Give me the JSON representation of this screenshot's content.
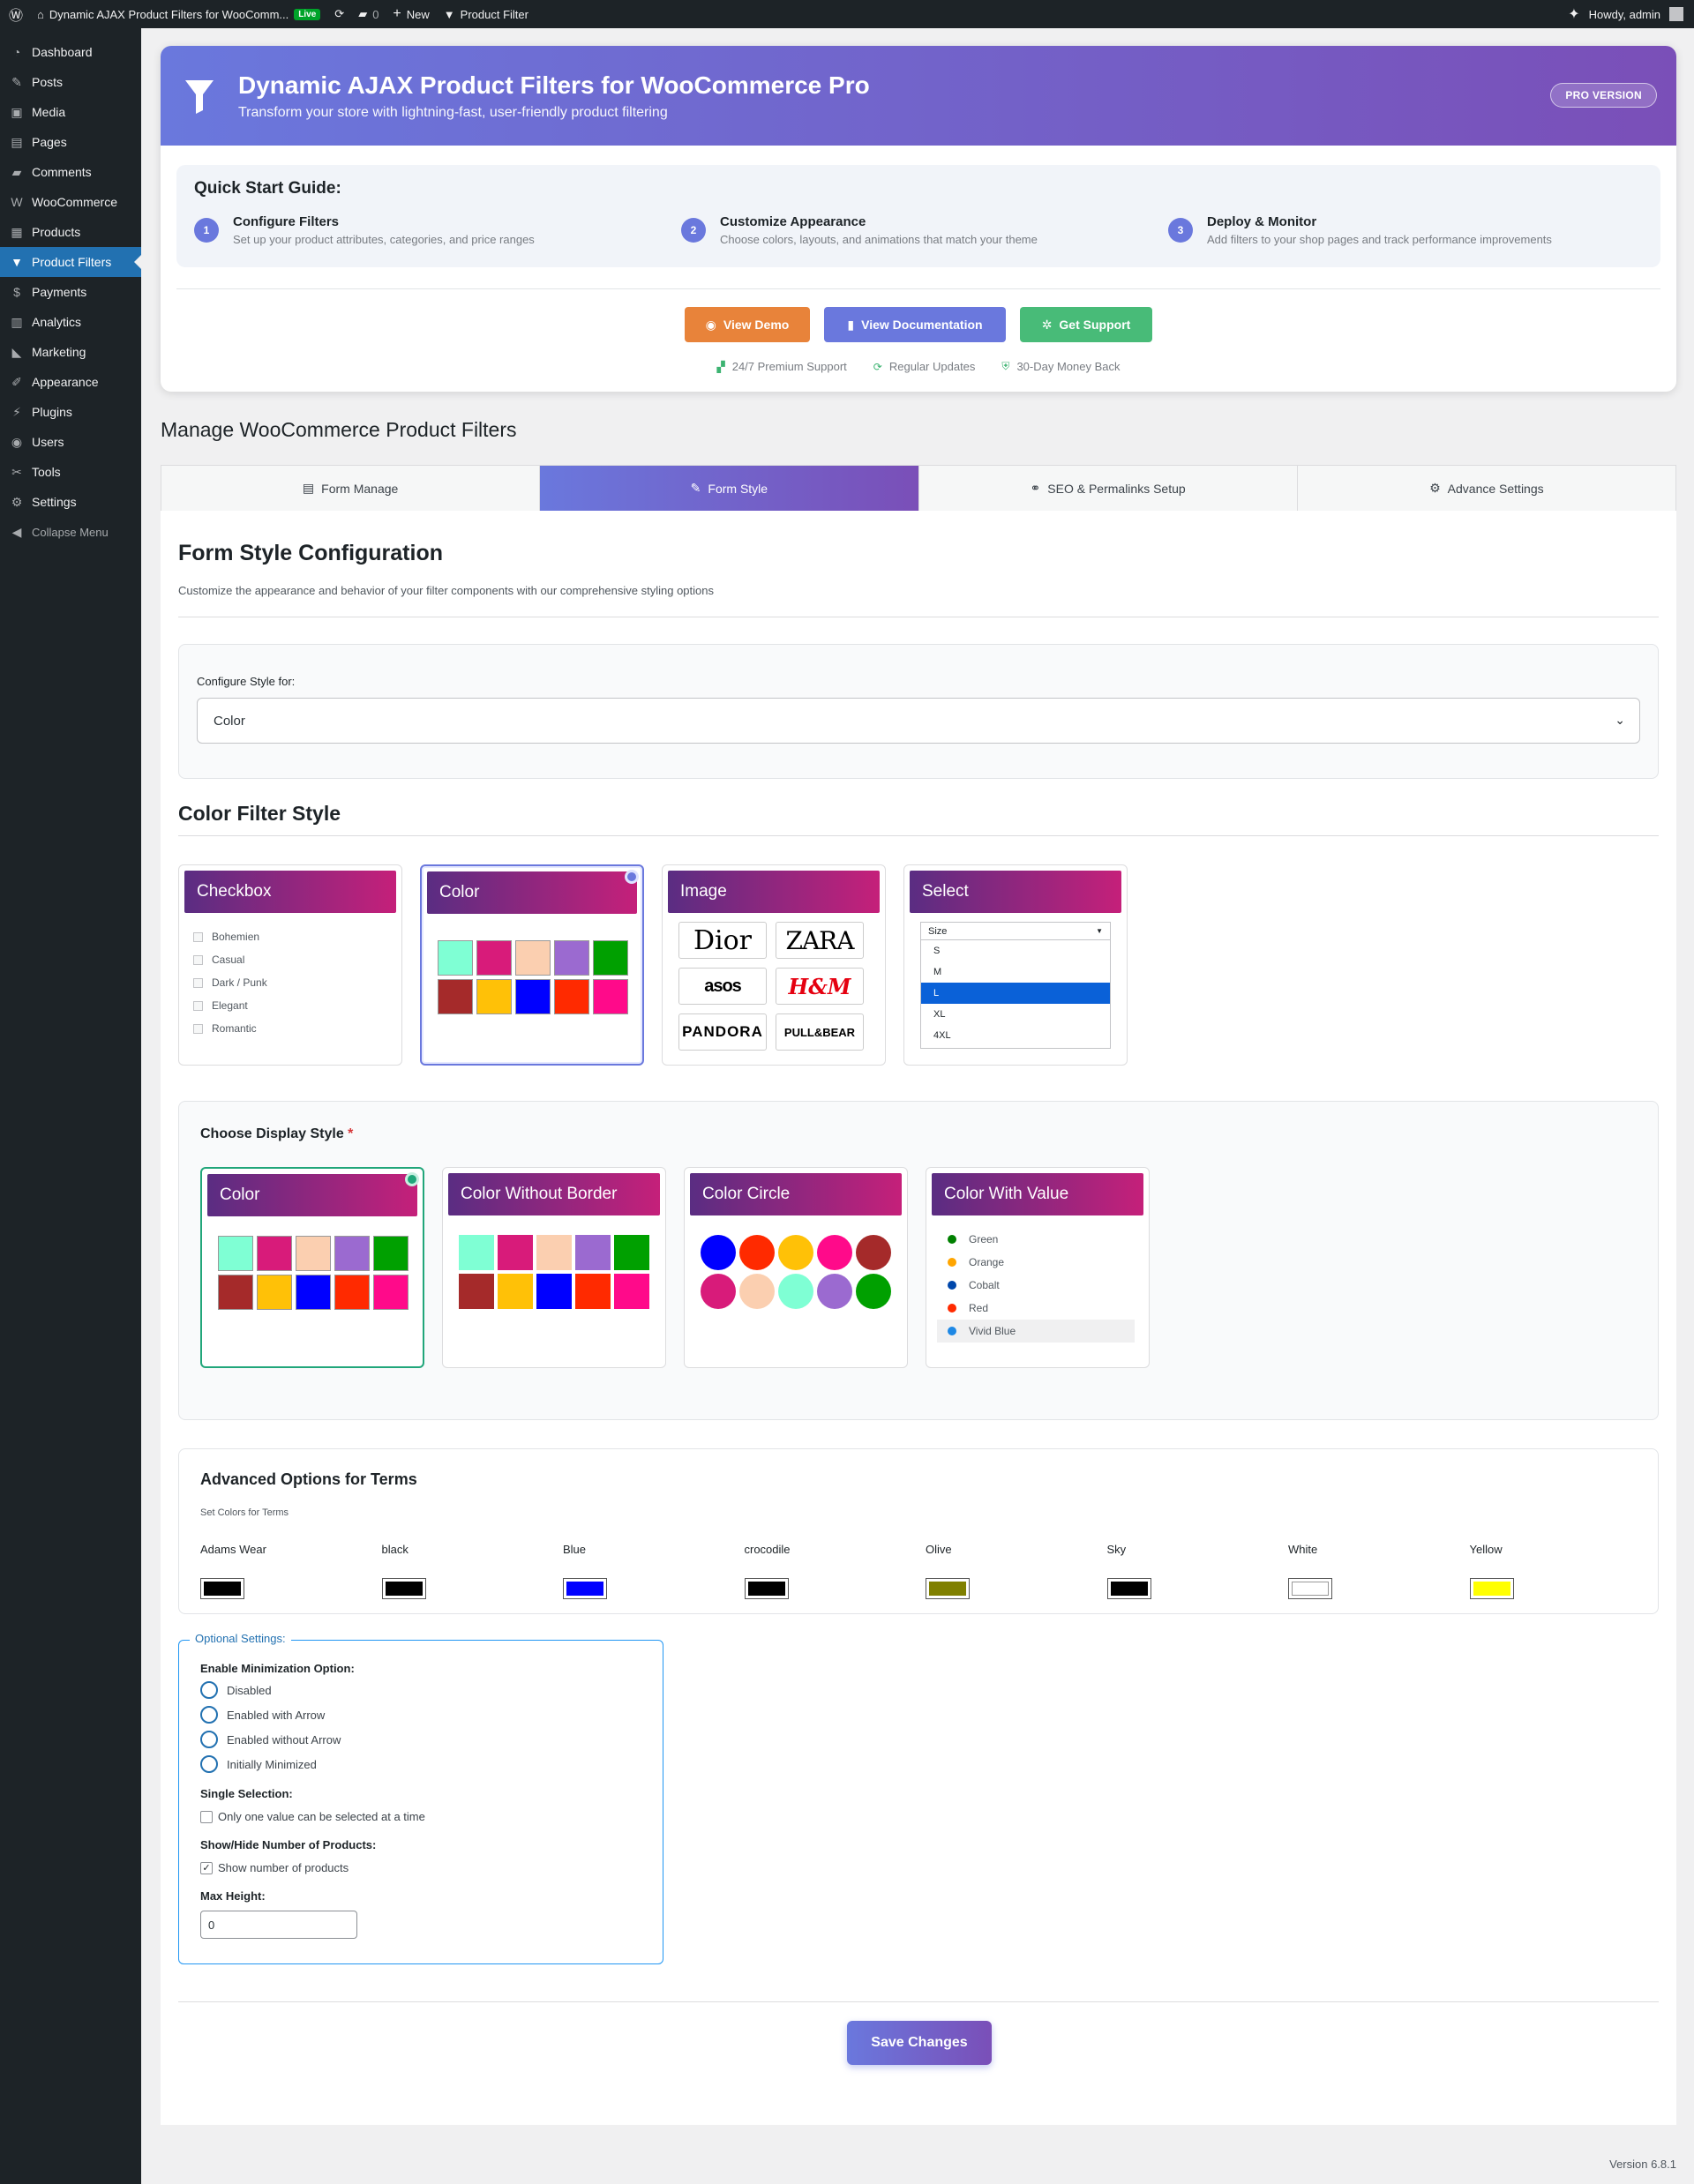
{
  "admin_bar": {
    "site_title": "Dynamic AJAX Product Filters for WooComm...",
    "live_badge": "Live",
    "comments_count": "0",
    "new_label": "New",
    "plugin_link": "Product Filter",
    "howdy": "Howdy, admin"
  },
  "sidebar": {
    "items": [
      {
        "label": "Dashboard",
        "icon": "dashboard-icon",
        "glyph": "◔"
      },
      {
        "label": "Posts",
        "icon": "pin-icon",
        "glyph": "✎"
      },
      {
        "label": "Media",
        "icon": "media-icon",
        "glyph": "▣"
      },
      {
        "label": "Pages",
        "icon": "pages-icon",
        "glyph": "▤"
      },
      {
        "label": "Comments",
        "icon": "comments-icon",
        "glyph": "▰"
      },
      {
        "label": "WooCommerce",
        "icon": "woo-icon",
        "glyph": "W"
      },
      {
        "label": "Products",
        "icon": "products-icon",
        "glyph": "▦"
      },
      {
        "label": "Product Filters",
        "icon": "filter-icon",
        "glyph": "▼"
      },
      {
        "label": "Payments",
        "icon": "payments-icon",
        "glyph": "$"
      },
      {
        "label": "Analytics",
        "icon": "analytics-icon",
        "glyph": "▥"
      },
      {
        "label": "Marketing",
        "icon": "marketing-icon",
        "glyph": "◣"
      },
      {
        "label": "Appearance",
        "icon": "appearance-icon",
        "glyph": "✐"
      },
      {
        "label": "Plugins",
        "icon": "plugins-icon",
        "glyph": "⚡"
      },
      {
        "label": "Users",
        "icon": "users-icon",
        "glyph": "◉"
      },
      {
        "label": "Tools",
        "icon": "tools-icon",
        "glyph": "✂"
      },
      {
        "label": "Settings",
        "icon": "settings-icon",
        "glyph": "⚙"
      }
    ],
    "collapse": "Collapse Menu"
  },
  "hero": {
    "title": "Dynamic AJAX Product Filters for WooCommerce Pro",
    "subtitle": "Transform your store with lightning-fast, user-friendly product filtering",
    "badge": "PRO VERSION",
    "guide_title": "Quick Start Guide:",
    "steps": [
      {
        "num": "1",
        "title": "Configure Filters",
        "desc": "Set up your product attributes, categories, and price ranges"
      },
      {
        "num": "2",
        "title": "Customize Appearance",
        "desc": "Choose colors, layouts, and animations that match your theme"
      },
      {
        "num": "3",
        "title": "Deploy & Monitor",
        "desc": "Add filters to your shop pages and track performance improvements"
      }
    ],
    "buttons": [
      {
        "label": "View Demo",
        "color": "#e8833a",
        "icon": "eye-icon"
      },
      {
        "label": "View Documentation",
        "color": "#6a78dd",
        "icon": "book-icon"
      },
      {
        "label": "Get Support",
        "color": "#48bb78",
        "icon": "support-icon"
      }
    ],
    "features": [
      "24/7 Premium Support",
      "Regular Updates",
      "30-Day Money Back"
    ]
  },
  "page_heading": "Manage WooCommerce Product Filters",
  "tabs": [
    {
      "label": "Form Manage",
      "icon": "form-icon"
    },
    {
      "label": "Form Style",
      "icon": "brush-icon"
    },
    {
      "label": "SEO & Permalinks Setup",
      "icon": "link-icon"
    },
    {
      "label": "Advance Settings",
      "icon": "gear-icon"
    }
  ],
  "content": {
    "title": "Form Style Configuration",
    "description": "Customize the appearance and behavior of your filter components with our comprehensive styling options",
    "configure_label": "Configure Style for:",
    "configure_value": "Color",
    "filter_style_title": "Color Filter Style",
    "style_cards": [
      {
        "title": "Checkbox"
      },
      {
        "title": "Color"
      },
      {
        "title": "Image"
      },
      {
        "title": "Select"
      }
    ],
    "checkbox_items": [
      "Bohemien",
      "Casual",
      "Dark / Punk",
      "Elegant",
      "Romantic"
    ],
    "swatch_colors": [
      "#7fffd4",
      "#d81b7a",
      "#fbcfb0",
      "#9b6ad0",
      "#00a000",
      "#a52a2a",
      "#ffc107",
      "#0000ff",
      "#ff2a00",
      "#ff0a8a"
    ],
    "brands": [
      "Dior",
      "ZARA",
      "asos",
      "H&M",
      "PANDORA",
      "PULL&BEAR"
    ],
    "select_demo": {
      "placeholder": "Size",
      "options": [
        "S",
        "M",
        "L",
        "XL",
        "4XL"
      ],
      "highlighted": "L"
    },
    "display_label": "Choose Display Style",
    "display_required": "*",
    "display_cards": [
      {
        "title": "Color"
      },
      {
        "title": "Color Without Border"
      },
      {
        "title": "Color Circle"
      },
      {
        "title": "Color With Value"
      }
    ],
    "circle_colors": [
      "#0000ff",
      "#ff2a00",
      "#ffc107",
      "#ff0a8a",
      "#a52a2a",
      "#d81b7a",
      "#fbcfb0",
      "#7fffd4",
      "#9b6ad0",
      "#00a000"
    ],
    "color_values": [
      {
        "label": "Green",
        "color": "#008000"
      },
      {
        "label": "Orange",
        "color": "#ffa500"
      },
      {
        "label": "Cobalt",
        "color": "#0047ab"
      },
      {
        "label": "Red",
        "color": "#ff2a00"
      },
      {
        "label": "Vivid Blue",
        "color": "#1e88e5"
      }
    ],
    "advanced_title": "Advanced Options for Terms",
    "advanced_sub": "Set Colors for Terms",
    "terms": [
      {
        "label": "Adams Wear",
        "color": "#000000"
      },
      {
        "label": "black",
        "color": "#000000"
      },
      {
        "label": "Blue",
        "color": "#0000ff"
      },
      {
        "label": "crocodile",
        "color": "#000000"
      },
      {
        "label": "Olive",
        "color": "#808000"
      },
      {
        "label": "Sky",
        "color": "#000000"
      },
      {
        "label": "White",
        "color": "#ffffff"
      },
      {
        "label": "Yellow",
        "color": "#ffff00"
      }
    ],
    "optional": {
      "legend": "Optional Settings:",
      "minimization_label": "Enable Minimization Option:",
      "minimization_options": [
        "Disabled",
        "Enabled with Arrow",
        "Enabled without Arrow",
        "Initially Minimized"
      ],
      "single_label": "Single Selection:",
      "single_option": "Only one value can be selected at a time",
      "showhide_label": "Show/Hide Number of Products:",
      "showhide_option": "Show number of products",
      "max_height_label": "Max Height:",
      "max_height_value": "0"
    },
    "save_label": "Save Changes"
  },
  "footer_version": "Version 6.8.1"
}
